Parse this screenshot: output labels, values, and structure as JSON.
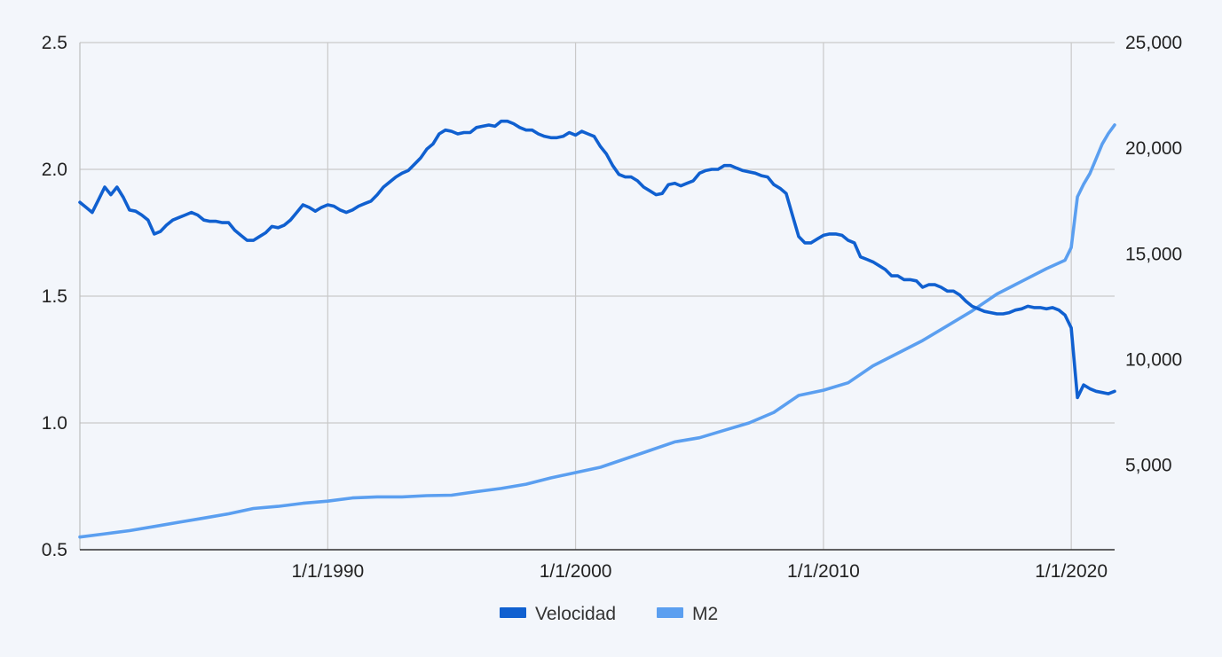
{
  "chart_data": {
    "type": "line",
    "title": "",
    "x_axis": {
      "type": "date",
      "range": [
        "1980-01-01",
        "2021-10-01"
      ],
      "ticks": [
        "1/1/1990",
        "1/1/2000",
        "1/1/2010",
        "1/1/2020"
      ],
      "tick_values": [
        "1990-01-01",
        "2000-01-01",
        "2010-01-01",
        "2020-01-01"
      ]
    },
    "y_left": {
      "range": [
        0.5,
        2.5
      ],
      "ticks": [
        "0.5",
        "1.0",
        "1.5",
        "2.0",
        "2.5"
      ],
      "tick_values": [
        0.5,
        1.0,
        1.5,
        2.0,
        2.5
      ]
    },
    "y_right": {
      "range": [
        1000,
        25000
      ],
      "ticks": [
        "5,000",
        "10,000",
        "15,000",
        "20,000",
        "25,000"
      ],
      "tick_values": [
        5000,
        10000,
        15000,
        20000,
        25000
      ]
    },
    "grid": true,
    "legend_position": "bottom",
    "series": [
      {
        "name": "Velocidad",
        "axis": "left",
        "color": "#1060d0",
        "points": [
          [
            "1980-01-01",
            1.87
          ],
          [
            "1980-04-01",
            1.85
          ],
          [
            "1980-07-01",
            1.83
          ],
          [
            "1980-10-01",
            1.88
          ],
          [
            "1981-01-01",
            1.93
          ],
          [
            "1981-04-01",
            1.9
          ],
          [
            "1981-07-01",
            1.93
          ],
          [
            "1981-10-01",
            1.89
          ],
          [
            "1982-01-01",
            1.84
          ],
          [
            "1982-04-01",
            1.835
          ],
          [
            "1982-07-01",
            1.82
          ],
          [
            "1982-10-01",
            1.8
          ],
          [
            "1983-01-01",
            1.745
          ],
          [
            "1983-04-01",
            1.755
          ],
          [
            "1983-07-01",
            1.78
          ],
          [
            "1983-10-01",
            1.8
          ],
          [
            "1984-01-01",
            1.81
          ],
          [
            "1984-04-01",
            1.82
          ],
          [
            "1984-07-01",
            1.83
          ],
          [
            "1984-10-01",
            1.82
          ],
          [
            "1985-01-01",
            1.8
          ],
          [
            "1985-04-01",
            1.795
          ],
          [
            "1985-07-01",
            1.795
          ],
          [
            "1985-10-01",
            1.79
          ],
          [
            "1986-01-01",
            1.79
          ],
          [
            "1986-04-01",
            1.76
          ],
          [
            "1986-07-01",
            1.74
          ],
          [
            "1986-10-01",
            1.72
          ],
          [
            "1987-01-01",
            1.72
          ],
          [
            "1987-04-01",
            1.735
          ],
          [
            "1987-07-01",
            1.75
          ],
          [
            "1987-10-01",
            1.775
          ],
          [
            "1988-01-01",
            1.77
          ],
          [
            "1988-04-01",
            1.78
          ],
          [
            "1988-07-01",
            1.8
          ],
          [
            "1988-10-01",
            1.83
          ],
          [
            "1989-01-01",
            1.86
          ],
          [
            "1989-04-01",
            1.85
          ],
          [
            "1989-07-01",
            1.835
          ],
          [
            "1989-10-01",
            1.85
          ],
          [
            "1990-01-01",
            1.86
          ],
          [
            "1990-04-01",
            1.855
          ],
          [
            "1990-07-01",
            1.84
          ],
          [
            "1990-10-01",
            1.83
          ],
          [
            "1991-01-01",
            1.84
          ],
          [
            "1991-04-01",
            1.855
          ],
          [
            "1991-07-01",
            1.865
          ],
          [
            "1991-10-01",
            1.875
          ],
          [
            "1992-01-01",
            1.9
          ],
          [
            "1992-04-01",
            1.93
          ],
          [
            "1992-07-01",
            1.95
          ],
          [
            "1992-10-01",
            1.97
          ],
          [
            "1993-01-01",
            1.985
          ],
          [
            "1993-04-01",
            1.995
          ],
          [
            "1993-07-01",
            2.02
          ],
          [
            "1993-10-01",
            2.045
          ],
          [
            "1994-01-01",
            2.08
          ],
          [
            "1994-04-01",
            2.1
          ],
          [
            "1994-07-01",
            2.14
          ],
          [
            "1994-10-01",
            2.155
          ],
          [
            "1995-01-01",
            2.15
          ],
          [
            "1995-04-01",
            2.14
          ],
          [
            "1995-07-01",
            2.145
          ],
          [
            "1995-10-01",
            2.145
          ],
          [
            "1996-01-01",
            2.165
          ],
          [
            "1996-04-01",
            2.17
          ],
          [
            "1996-07-01",
            2.175
          ],
          [
            "1996-10-01",
            2.17
          ],
          [
            "1997-01-01",
            2.19
          ],
          [
            "1997-04-01",
            2.19
          ],
          [
            "1997-07-01",
            2.18
          ],
          [
            "1997-10-01",
            2.165
          ],
          [
            "1998-01-01",
            2.155
          ],
          [
            "1998-04-01",
            2.155
          ],
          [
            "1998-07-01",
            2.14
          ],
          [
            "1998-10-01",
            2.13
          ],
          [
            "1999-01-01",
            2.125
          ],
          [
            "1999-04-01",
            2.125
          ],
          [
            "1999-07-01",
            2.13
          ],
          [
            "1999-10-01",
            2.145
          ],
          [
            "2000-01-01",
            2.135
          ],
          [
            "2000-04-01",
            2.15
          ],
          [
            "2000-07-01",
            2.14
          ],
          [
            "2000-10-01",
            2.13
          ],
          [
            "2001-01-01",
            2.09
          ],
          [
            "2001-04-01",
            2.06
          ],
          [
            "2001-07-01",
            2.015
          ],
          [
            "2001-10-01",
            1.98
          ],
          [
            "2002-01-01",
            1.97
          ],
          [
            "2002-04-01",
            1.97
          ],
          [
            "2002-07-01",
            1.955
          ],
          [
            "2002-10-01",
            1.93
          ],
          [
            "2003-01-01",
            1.915
          ],
          [
            "2003-04-01",
            1.9
          ],
          [
            "2003-07-01",
            1.905
          ],
          [
            "2003-10-01",
            1.94
          ],
          [
            "2004-01-01",
            1.945
          ],
          [
            "2004-04-01",
            1.935
          ],
          [
            "2004-07-01",
            1.945
          ],
          [
            "2004-10-01",
            1.955
          ],
          [
            "2005-01-01",
            1.985
          ],
          [
            "2005-04-01",
            1.995
          ],
          [
            "2005-07-01",
            2.0
          ],
          [
            "2005-10-01",
            2.0
          ],
          [
            "2006-01-01",
            2.015
          ],
          [
            "2006-04-01",
            2.015
          ],
          [
            "2006-07-01",
            2.005
          ],
          [
            "2006-10-01",
            1.995
          ],
          [
            "2007-01-01",
            1.99
          ],
          [
            "2007-04-01",
            1.985
          ],
          [
            "2007-07-01",
            1.975
          ],
          [
            "2007-10-01",
            1.97
          ],
          [
            "2008-01-01",
            1.94
          ],
          [
            "2008-04-01",
            1.925
          ],
          [
            "2008-07-01",
            1.905
          ],
          [
            "2008-10-01",
            1.82
          ],
          [
            "2009-01-01",
            1.735
          ],
          [
            "2009-04-01",
            1.71
          ],
          [
            "2009-07-01",
            1.71
          ],
          [
            "2009-10-01",
            1.725
          ],
          [
            "2010-01-01",
            1.74
          ],
          [
            "2010-04-01",
            1.745
          ],
          [
            "2010-07-01",
            1.745
          ],
          [
            "2010-10-01",
            1.74
          ],
          [
            "2011-01-01",
            1.72
          ],
          [
            "2011-04-01",
            1.71
          ],
          [
            "2011-07-01",
            1.655
          ],
          [
            "2011-10-01",
            1.645
          ],
          [
            "2012-01-01",
            1.635
          ],
          [
            "2012-04-01",
            1.62
          ],
          [
            "2012-07-01",
            1.605
          ],
          [
            "2012-10-01",
            1.58
          ],
          [
            "2013-01-01",
            1.58
          ],
          [
            "2013-04-01",
            1.565
          ],
          [
            "2013-07-01",
            1.565
          ],
          [
            "2013-10-01",
            1.56
          ],
          [
            "2014-01-01",
            1.535
          ],
          [
            "2014-04-01",
            1.545
          ],
          [
            "2014-07-01",
            1.545
          ],
          [
            "2014-10-01",
            1.535
          ],
          [
            "2015-01-01",
            1.52
          ],
          [
            "2015-04-01",
            1.52
          ],
          [
            "2015-07-01",
            1.505
          ],
          [
            "2015-10-01",
            1.48
          ],
          [
            "2016-01-01",
            1.46
          ],
          [
            "2016-04-01",
            1.45
          ],
          [
            "2016-07-01",
            1.44
          ],
          [
            "2016-10-01",
            1.435
          ],
          [
            "2017-01-01",
            1.43
          ],
          [
            "2017-04-01",
            1.43
          ],
          [
            "2017-07-01",
            1.435
          ],
          [
            "2017-10-01",
            1.445
          ],
          [
            "2018-01-01",
            1.45
          ],
          [
            "2018-04-01",
            1.46
          ],
          [
            "2018-07-01",
            1.455
          ],
          [
            "2018-10-01",
            1.455
          ],
          [
            "2019-01-01",
            1.45
          ],
          [
            "2019-04-01",
            1.455
          ],
          [
            "2019-07-01",
            1.445
          ],
          [
            "2019-10-01",
            1.425
          ],
          [
            "2020-01-01",
            1.375
          ],
          [
            "2020-04-01",
            1.1
          ],
          [
            "2020-07-01",
            1.15
          ],
          [
            "2020-10-01",
            1.135
          ],
          [
            "2021-01-01",
            1.125
          ],
          [
            "2021-04-01",
            1.12
          ],
          [
            "2021-07-01",
            1.115
          ],
          [
            "2021-10-01",
            1.125
          ]
        ]
      },
      {
        "name": "M2",
        "axis": "right",
        "color": "#5b9ff0",
        "points": [
          [
            "1980-01-01",
            1600
          ],
          [
            "1981-01-01",
            1750
          ],
          [
            "1982-01-01",
            1900
          ],
          [
            "1983-01-01",
            2100
          ],
          [
            "1984-01-01",
            2300
          ],
          [
            "1985-01-01",
            2500
          ],
          [
            "1986-01-01",
            2700
          ],
          [
            "1987-01-01",
            2950
          ],
          [
            "1988-01-01",
            3050
          ],
          [
            "1989-01-01",
            3200
          ],
          [
            "1990-01-01",
            3300
          ],
          [
            "1991-01-01",
            3450
          ],
          [
            "1992-01-01",
            3500
          ],
          [
            "1993-01-01",
            3500
          ],
          [
            "1994-01-01",
            3560
          ],
          [
            "1995-01-01",
            3580
          ],
          [
            "1996-01-01",
            3750
          ],
          [
            "1997-01-01",
            3900
          ],
          [
            "1998-01-01",
            4100
          ],
          [
            "1999-01-01",
            4400
          ],
          [
            "2000-01-01",
            4650
          ],
          [
            "2001-01-01",
            4900
          ],
          [
            "2002-01-01",
            5300
          ],
          [
            "2003-01-01",
            5700
          ],
          [
            "2004-01-01",
            6100
          ],
          [
            "2005-01-01",
            6300
          ],
          [
            "2006-01-01",
            6650
          ],
          [
            "2007-01-01",
            7000
          ],
          [
            "2008-01-01",
            7500
          ],
          [
            "2009-01-01",
            8300
          ],
          [
            "2010-01-01",
            8550
          ],
          [
            "2011-01-01",
            8900
          ],
          [
            "2012-01-01",
            9700
          ],
          [
            "2013-01-01",
            10300
          ],
          [
            "2014-01-01",
            10900
          ],
          [
            "2015-01-01",
            11600
          ],
          [
            "2016-01-01",
            12300
          ],
          [
            "2017-01-01",
            13100
          ],
          [
            "2018-01-01",
            13700
          ],
          [
            "2019-01-01",
            14300
          ],
          [
            "2019-10-01",
            14700
          ],
          [
            "2020-01-01",
            15300
          ],
          [
            "2020-04-01",
            17700
          ],
          [
            "2020-07-01",
            18300
          ],
          [
            "2020-10-01",
            18800
          ],
          [
            "2021-01-01",
            19500
          ],
          [
            "2021-04-01",
            20200
          ],
          [
            "2021-07-01",
            20700
          ],
          [
            "2021-10-01",
            21100
          ]
        ]
      }
    ]
  }
}
